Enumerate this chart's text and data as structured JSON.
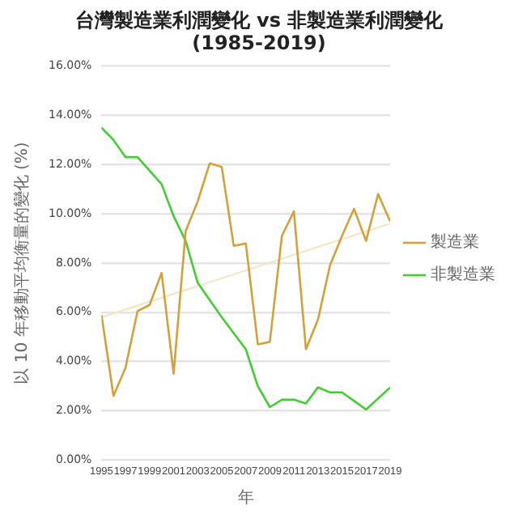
{
  "chart_data": {
    "type": "line",
    "title": "台灣製造業利潤變化 vs 非製造業利潤變化",
    "subtitle": "(1985-2019)",
    "xlabel": "年",
    "ylabel": "以 10 年移動平均衡量的變化 (%)",
    "x": [
      1995,
      1996,
      1997,
      1998,
      1999,
      2000,
      2001,
      2002,
      2003,
      2004,
      2005,
      2006,
      2007,
      2008,
      2009,
      2010,
      2011,
      2012,
      2013,
      2014,
      2015,
      2016,
      2017,
      2018,
      2019
    ],
    "series": [
      {
        "name": "製造業",
        "color": "#d4a03a",
        "values": [
          5.9,
          2.6,
          3.75,
          6.05,
          6.3,
          7.6,
          3.5,
          9.3,
          10.5,
          12.05,
          11.9,
          8.7,
          8.8,
          4.7,
          4.8,
          9.1,
          10.1,
          4.5,
          5.7,
          7.9,
          9.1,
          10.2,
          8.9,
          10.8,
          9.7
        ]
      },
      {
        "name": "非製造業",
        "color": "#44cc33",
        "values": [
          13.5,
          13.0,
          12.3,
          12.3,
          11.75,
          11.2,
          9.9,
          8.9,
          7.2,
          6.5,
          5.8,
          5.15,
          4.5,
          3.0,
          2.15,
          2.45,
          2.45,
          2.3,
          2.95,
          2.75,
          2.75,
          2.4,
          2.05,
          2.5,
          2.95
        ]
      },
      {
        "type": "line",
        "color": "#f6e3c4",
        "x": [
          1995,
          2019
        ],
        "values": [
          5.8,
          9.6
        ]
      }
    ],
    "xlim": [
      1995,
      2019
    ],
    "xticks": [
      1995,
      1997,
      1999,
      2001,
      2003,
      2005,
      2007,
      2009,
      2011,
      2013,
      2015,
      2017,
      2019
    ],
    "ylim": [
      0,
      16
    ],
    "yticks": [
      {
        "value": 0,
        "label": "0.00%"
      },
      {
        "value": 2,
        "label": "2.00%"
      },
      {
        "value": 4,
        "label": "4.00%"
      },
      {
        "value": 6,
        "label": "6.00%"
      },
      {
        "value": 8,
        "label": "8.00%"
      },
      {
        "value": 10,
        "label": "10.00%"
      },
      {
        "value": 12,
        "label": "12.00%"
      },
      {
        "value": 14,
        "label": "14.00%"
      },
      {
        "value": 16,
        "label": "16.00%"
      }
    ],
    "grid": "y",
    "legend": "right",
    "marker": "none",
    "line_style": "solid"
  }
}
